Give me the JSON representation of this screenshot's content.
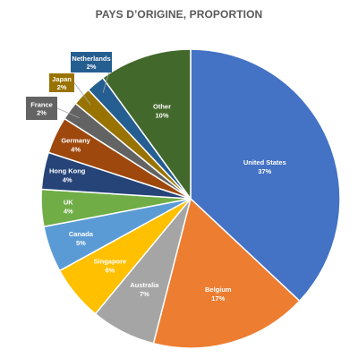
{
  "chart_data": {
    "type": "pie",
    "title": "PAYS D’ORIGINE, PROPORTION",
    "start_angle_deg": 0,
    "direction": "clockwise",
    "slices": [
      {
        "label": "United States",
        "value": 37,
        "display": "37%",
        "color": "#4472C4"
      },
      {
        "label": "Belgium",
        "value": 17,
        "display": "17%",
        "color": "#ED7D31"
      },
      {
        "label": "Australia",
        "value": 7,
        "display": "7%",
        "color": "#A5A5A5"
      },
      {
        "label": "Singapore",
        "value": 6,
        "display": "6%",
        "color": "#FFC000"
      },
      {
        "label": "Canada",
        "value": 5,
        "display": "5%",
        "color": "#5B9BD5"
      },
      {
        "label": "UK",
        "value": 4,
        "display": "4%",
        "color": "#70AD47"
      },
      {
        "label": "Hong Kong",
        "value": 4,
        "display": "4%",
        "color": "#264478"
      },
      {
        "label": "Germany",
        "value": 4,
        "display": "4%",
        "color": "#9E480E"
      },
      {
        "label": "France",
        "value": 2,
        "display": "2%",
        "color": "#636363"
      },
      {
        "label": "Japan",
        "value": 2,
        "display": "2%",
        "color": "#997300"
      },
      {
        "label": "Netherlands",
        "value": 2,
        "display": "2%",
        "color": "#255E91"
      },
      {
        "label": "Other",
        "value": 10,
        "display": "10%",
        "color": "#43682B"
      }
    ],
    "legend": "none",
    "label_placement": "inside, callouts for France, Japan, Netherlands"
  }
}
